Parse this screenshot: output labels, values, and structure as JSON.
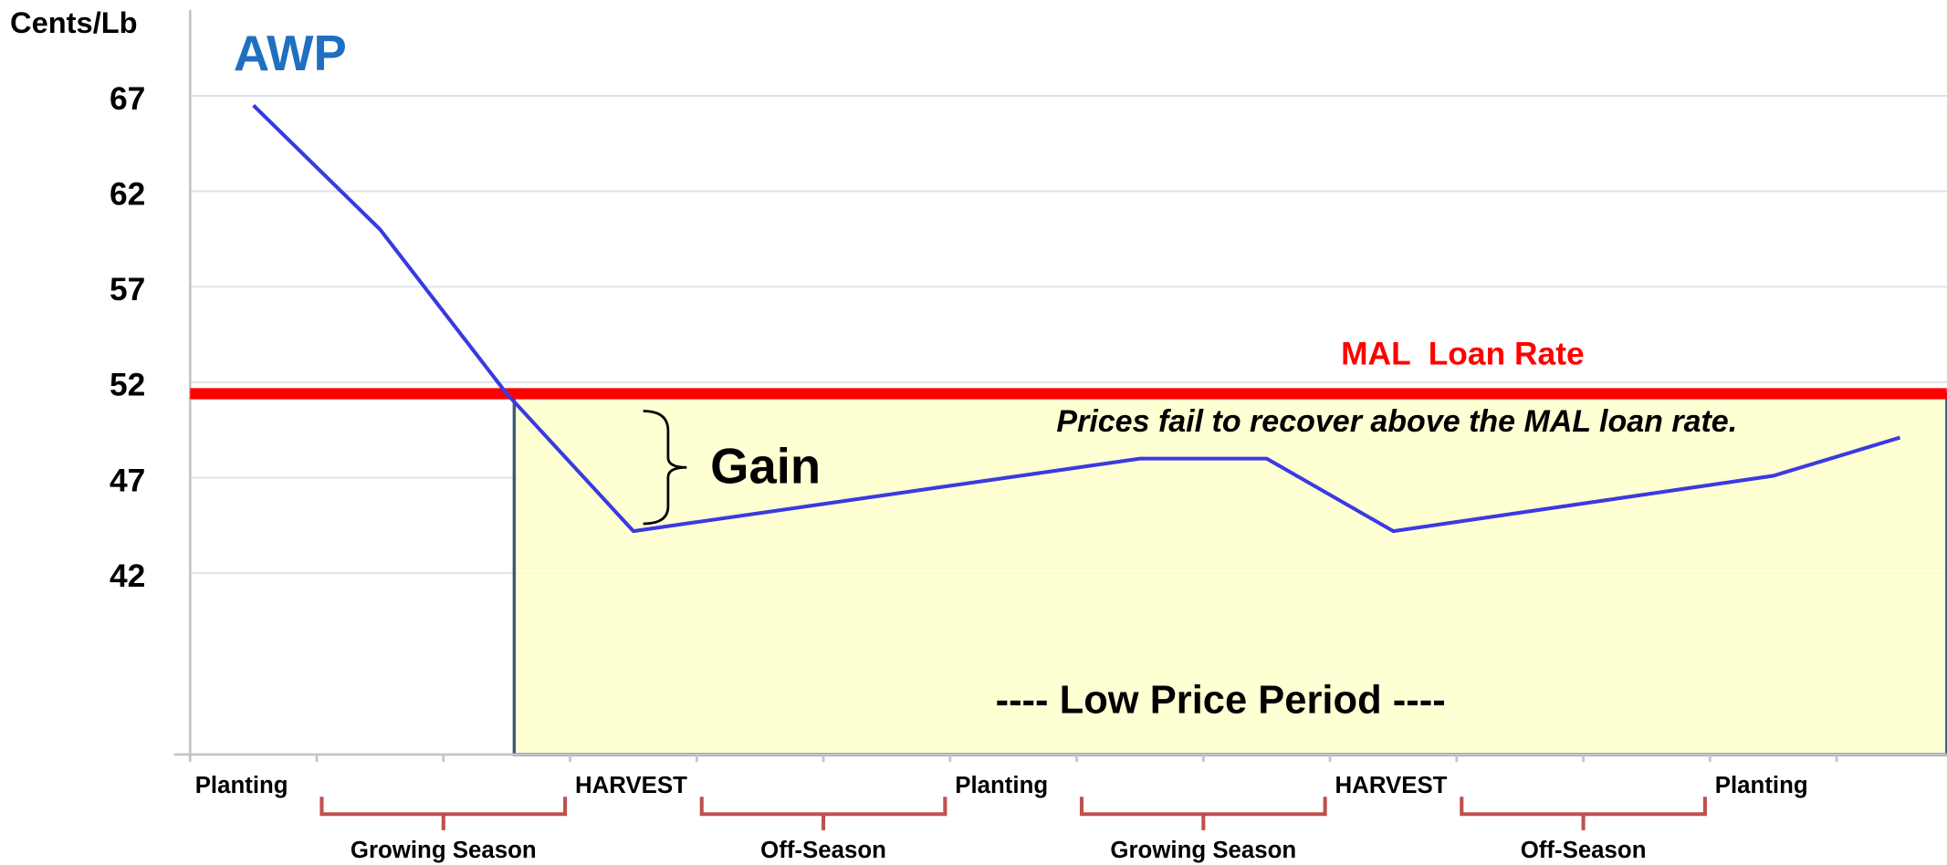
{
  "chart_data": {
    "type": "line",
    "y_label": "Cents/Lb",
    "x": [
      0.5,
      1.5,
      2.5,
      3.5,
      7.5,
      8.5,
      9.5,
      12.5,
      13.5
    ],
    "series": [
      {
        "name": "AWP",
        "color": "#3a3ae0",
        "label_color": "#1f70c1",
        "values": [
          66.5,
          60,
          51.4,
          44.2,
          48,
          48,
          44.2,
          47.1,
          49.1
        ]
      }
    ],
    "xlim": [
      0,
      13.87
    ],
    "ylim": [
      32.5,
      71.5
    ],
    "yticks": [
      42,
      47,
      52,
      57,
      62,
      67
    ],
    "grid": true,
    "xticks": [
      {
        "value": 0,
        "label": "Planting"
      },
      {
        "value": 3,
        "label": "HARVEST"
      },
      {
        "value": 6,
        "label": "Planting"
      },
      {
        "value": 9,
        "label": "HARVEST"
      },
      {
        "value": 12,
        "label": "Planting"
      }
    ],
    "x_minor_ticks": [
      1,
      2,
      4,
      5,
      7,
      8,
      10,
      11,
      13
    ],
    "seasons": [
      {
        "label": "Growing Season",
        "from": 1,
        "to": 3
      },
      {
        "label": "Off-Season",
        "from": 4,
        "to": 6
      },
      {
        "label": "Growing Season",
        "from": 7,
        "to": 9
      },
      {
        "label": "Off-Season",
        "from": 10,
        "to": 12
      }
    ],
    "reference_line": {
      "label": "MAL  Loan Rate",
      "value": 51.4,
      "color": "#ff0000"
    },
    "annotation": "Prices fail to recover above the MAL loan rate.",
    "gain_label": "Gain",
    "shaded_region": {
      "label": "---- Low Price Period ----",
      "color": "#ffffcc"
    },
    "season_color": "#c0504d"
  }
}
